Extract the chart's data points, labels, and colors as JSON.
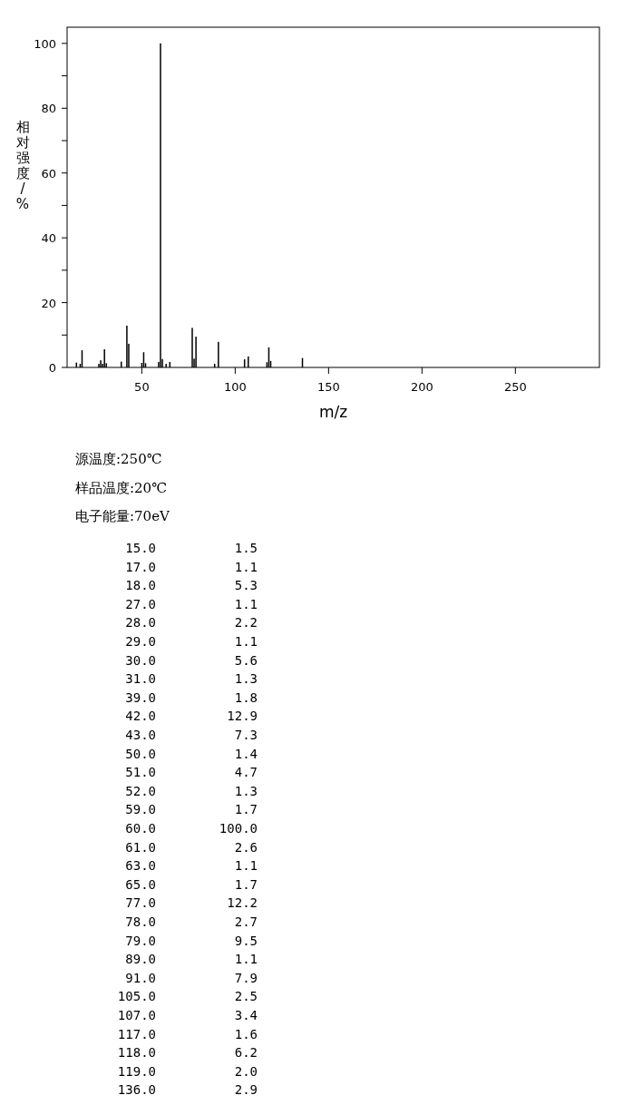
{
  "chart_data": {
    "type": "bar",
    "xlabel": "m/z",
    "ylabel": "相对强度/%",
    "annotations": [
      "源温度:250℃",
      "样品温度:20℃",
      "电子能量:70eV",
      "15.0",
      "1.5",
      "17.0",
      "1.1",
      "18.0",
      "5.3",
      "27.0",
      "1.1",
      "28.0",
      "2.2",
      "29.0",
      "1.1",
      "30.0",
      "5.6",
      "31.0",
      "1.3",
      "39.0",
      "1.8",
      "42.0",
      "12.9",
      "43.0",
      "7.3",
      "50.0",
      "1.4",
      "51.0",
      "4.7",
      "52.0",
      "1.3",
      "59.0",
      "1.7",
      "60.0",
      "100.0",
      "61.0",
      "2.6",
      "63.0",
      "1.1",
      "65.0",
      "1.7",
      "77.0",
      "12.2",
      "78.0",
      "2.7",
      "79.0",
      "9.5",
      "89.0",
      "1.1",
      "91.0",
      "7.9",
      "105.0",
      "2.5",
      "107.0",
      "3.4",
      "117.0",
      "1.6",
      "118.0",
      "6.2",
      "119.0",
      "2.0",
      "136.0",
      "2.9"
    ],
    "x": [
      15,
      17,
      18,
      27,
      28,
      29,
      30,
      31,
      39,
      42,
      43,
      50,
      51,
      52,
      59,
      60,
      61,
      63,
      65,
      77,
      78,
      79,
      89,
      91,
      105,
      107,
      117,
      118,
      119,
      136
    ],
    "values": [
      1.5,
      1.1,
      5.3,
      1.1,
      2.2,
      1.1,
      5.6,
      1.3,
      1.8,
      12.9,
      7.3,
      1.4,
      4.7,
      1.3,
      1.7,
      100.0,
      2.6,
      1.1,
      1.7,
      12.2,
      2.7,
      9.5,
      1.1,
      7.9,
      2.5,
      3.4,
      1.6,
      6.2,
      2.0,
      2.9
    ],
    "color": "#000000",
    "grid": false,
    "xlim": [
      10,
      295
    ],
    "ylim": [
      0,
      105
    ],
    "xticks": [
      50,
      100,
      150,
      200,
      250
    ],
    "yticks": [
      0,
      {
        "value": 10,
        "label": null
      },
      20,
      {
        "value": 30,
        "label": null
      },
      40,
      {
        "value": 50,
        "label": null
      },
      60,
      {
        "value": 70,
        "label": null
      },
      80,
      {
        "value": 90,
        "label": null
      },
      100
    ]
  }
}
